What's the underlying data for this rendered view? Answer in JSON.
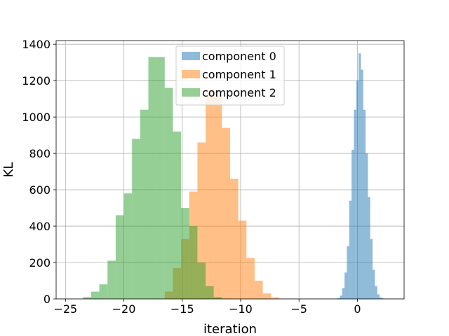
{
  "chart_data": {
    "type": "histogram",
    "title": "",
    "xlabel": "iteration",
    "ylabel": "KL",
    "xlim": [
      -25.8,
      4.0
    ],
    "ylim": [
      0,
      1420
    ],
    "xticks": [
      -25,
      -20,
      -15,
      -10,
      -5,
      0
    ],
    "yticks": [
      0,
      200,
      400,
      600,
      800,
      1000,
      1200,
      1400
    ],
    "grid": true,
    "legend_position": "top-center",
    "series": [
      {
        "name": "component 0",
        "color": "#1f77b4",
        "alpha": 0.5,
        "bin_start": -1.9,
        "bin_width": 0.2,
        "counts": [
          2,
          5,
          18,
          60,
          145,
          290,
          540,
          820,
          1040,
          1200,
          1350,
          1260,
          1040,
          800,
          560,
          330,
          160,
          70,
          25,
          8,
          3,
          1
        ]
      },
      {
        "name": "component 1",
        "color": "#ff7f0e",
        "alpha": 0.5,
        "bin_start": -16.5,
        "bin_width": 0.7,
        "counts": [
          40,
          170,
          330,
          590,
          860,
          1150,
          1120,
          940,
          660,
          430,
          225,
          100,
          30,
          8
        ]
      },
      {
        "name": "component 2",
        "color": "#2ca02c",
        "alpha": 0.5,
        "bin_start": -23.5,
        "bin_width": 0.7,
        "counts": [
          10,
          40,
          80,
          210,
          460,
          580,
          880,
          1040,
          1330,
          1330,
          1160,
          920,
          500,
          400,
          200,
          70,
          10,
          2
        ]
      }
    ]
  }
}
